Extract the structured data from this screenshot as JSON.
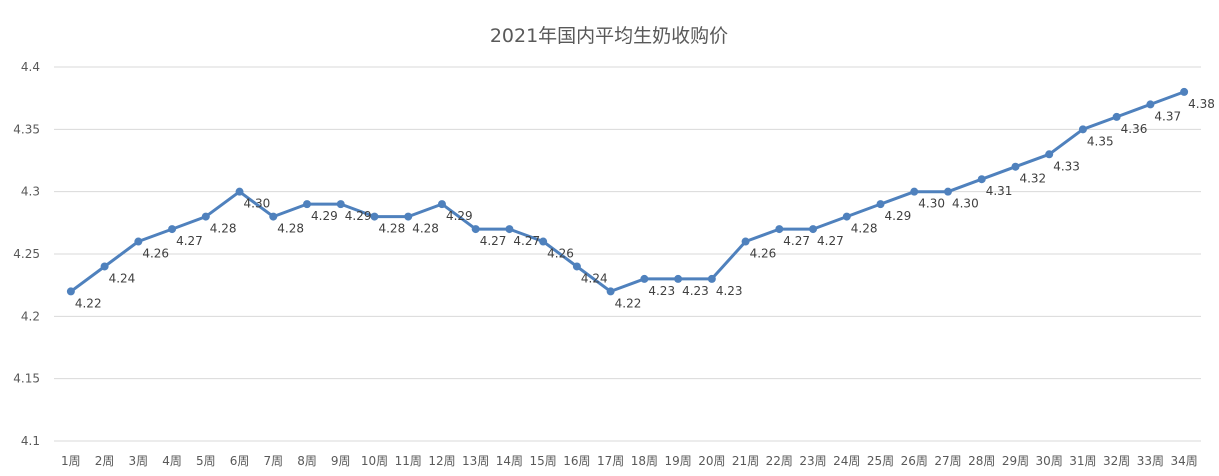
{
  "chart_data": {
    "type": "line",
    "title": "2021年国内平均生奶收购价",
    "xlabel": "",
    "ylabel": "",
    "ylim": [
      4.1,
      4.4
    ],
    "yticks": [
      "4.1",
      "4.15",
      "4.2",
      "4.25",
      "4.3",
      "4.35",
      "4.4"
    ],
    "grid": true,
    "legend": "none",
    "categories": [
      "1周",
      "2周",
      "3周",
      "4周",
      "5周",
      "6周",
      "7周",
      "8周",
      "9周",
      "10周",
      "11周",
      "12周",
      "13周",
      "14周",
      "15周",
      "16周",
      "17周",
      "18周",
      "19周",
      "20周",
      "21周",
      "22周",
      "23周",
      "24周",
      "25周",
      "26周",
      "27周",
      "28周",
      "29周",
      "30周",
      "31周",
      "32周",
      "33周",
      "34周"
    ],
    "series": [
      {
        "name": "平均生奶收购价",
        "color": "#4f81bd",
        "values": [
          4.22,
          4.24,
          4.26,
          4.27,
          4.28,
          4.3,
          4.28,
          4.29,
          4.29,
          4.28,
          4.28,
          4.29,
          4.27,
          4.27,
          4.26,
          4.24,
          4.22,
          4.23,
          4.23,
          4.23,
          4.26,
          4.27,
          4.27,
          4.28,
          4.29,
          4.3,
          4.3,
          4.31,
          4.32,
          4.33,
          4.35,
          4.36,
          4.37,
          4.38
        ],
        "labels": [
          "4.22",
          "4.24",
          "4.26",
          "4.27",
          "4.28",
          "4.30",
          "4.28",
          "4.29",
          "4.29",
          "4.28",
          "4.28",
          "4.29",
          "4.27",
          "4.27",
          "4.26",
          "4.24",
          "4.22",
          "4.23",
          "4.23",
          "4.23",
          "4.26",
          "4.27",
          "4.27",
          "4.28",
          "4.29",
          "4.30",
          "4.30",
          "4.31",
          "4.32",
          "4.33",
          "4.35",
          "4.36",
          "4.37",
          "4.38"
        ]
      }
    ]
  }
}
